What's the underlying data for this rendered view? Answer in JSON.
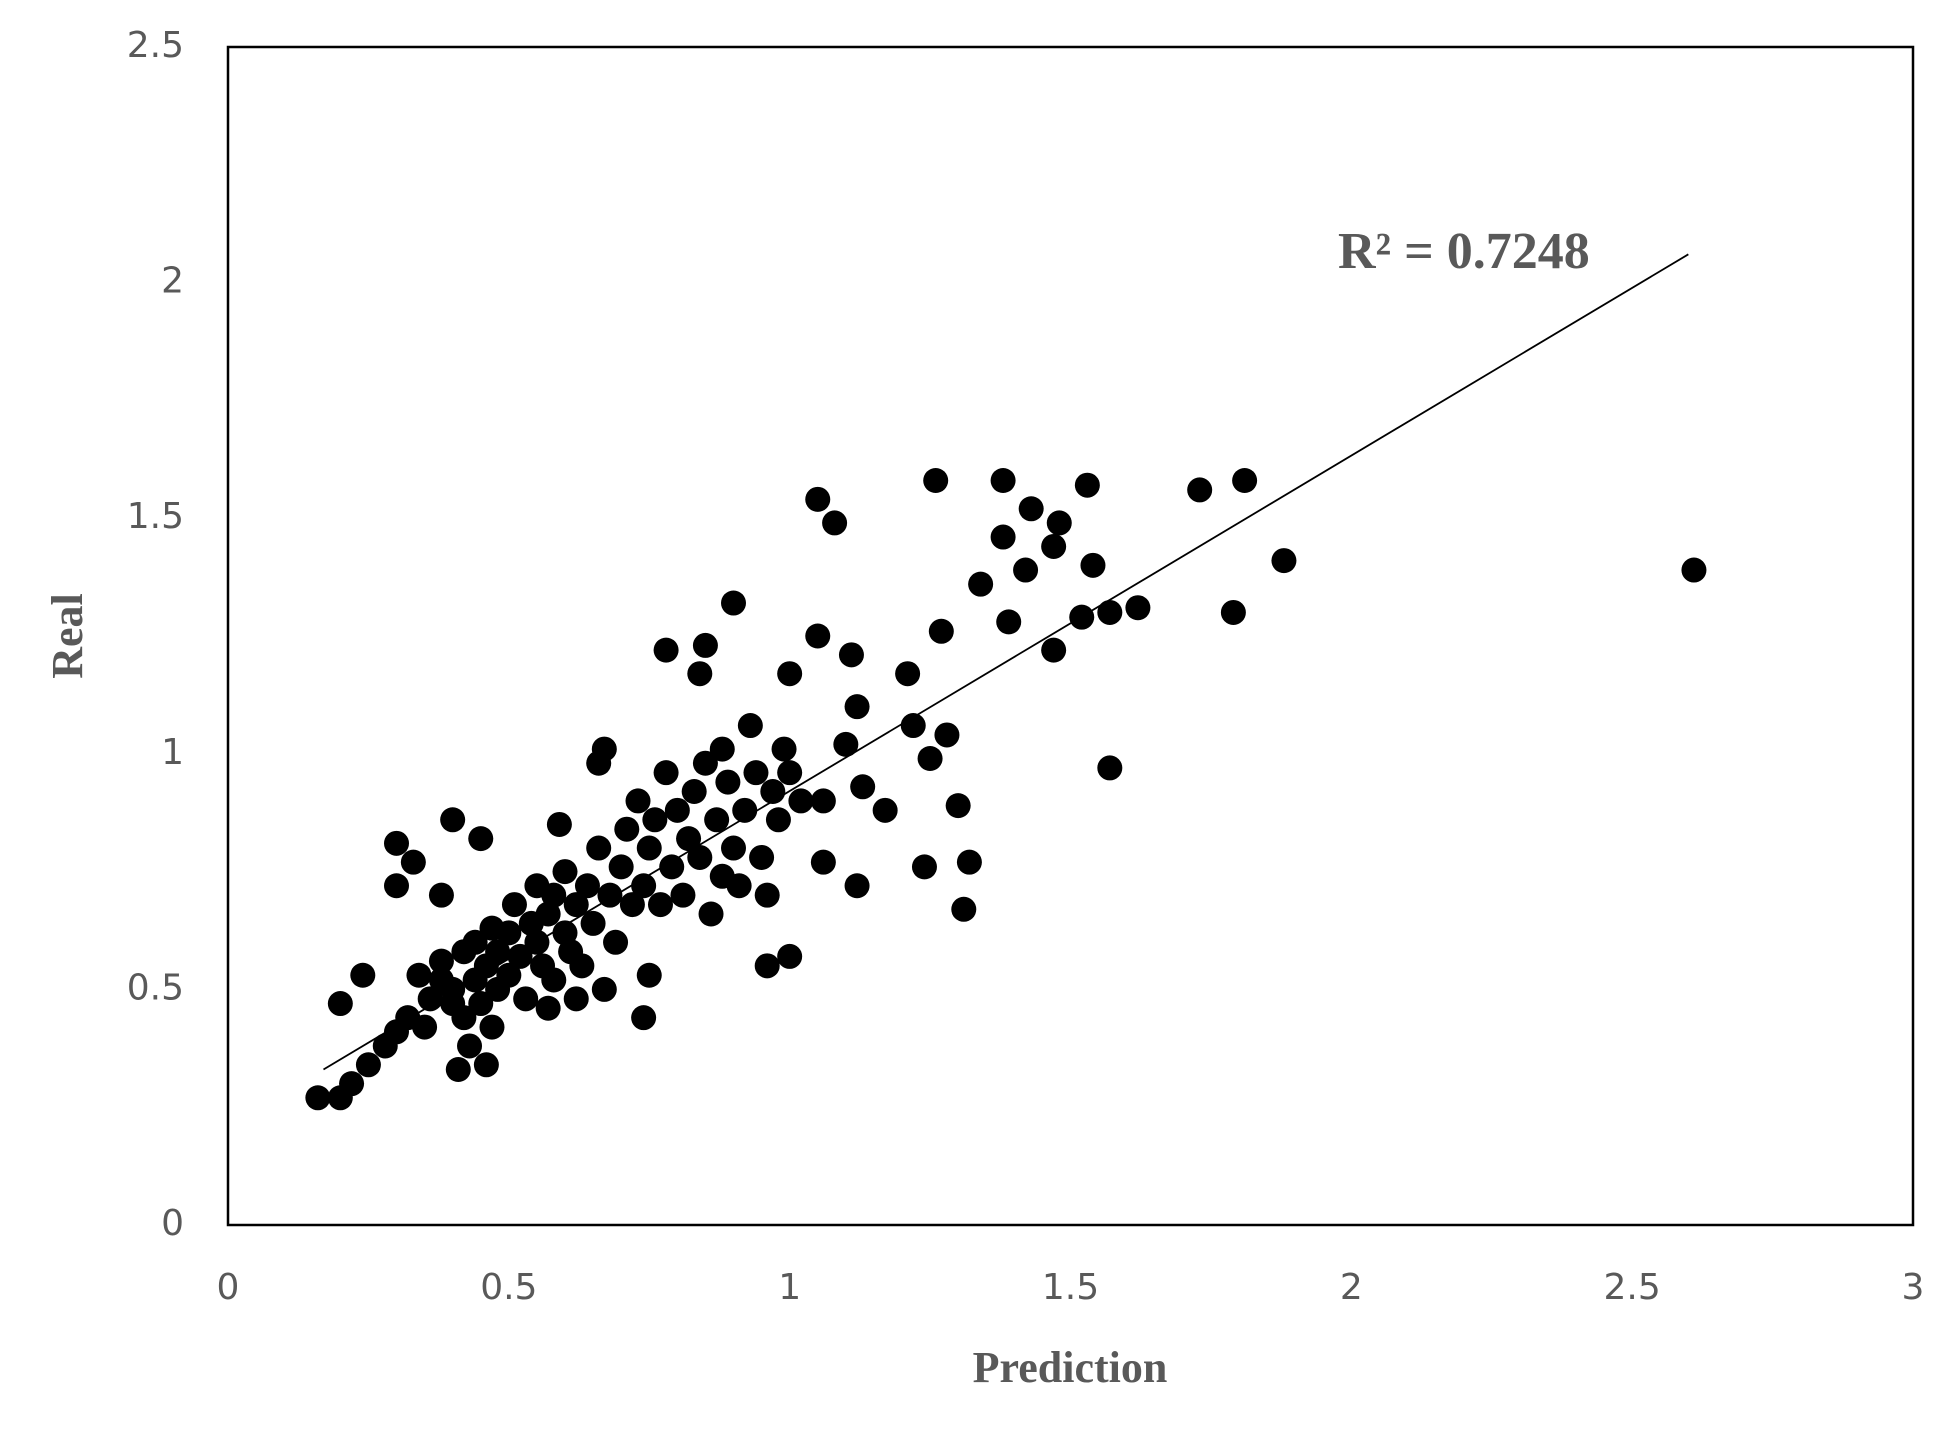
{
  "chart_data": {
    "type": "scatter",
    "x_label": "Prediction",
    "y_label": "Real",
    "annotation": "R² = 0.7248",
    "color": "#000000",
    "xlim": [
      0,
      3
    ],
    "ylim": [
      0,
      2.5
    ],
    "xticks": [
      0,
      0.5,
      1,
      1.5,
      2,
      2.5,
      3
    ],
    "yticks": [
      0,
      0.5,
      1,
      1.5,
      2,
      2.5
    ],
    "trendline": {
      "x": [
        0.17,
        2.6
      ],
      "y": [
        0.33,
        2.06
      ]
    },
    "x": [
      2.61,
      1.88,
      1.81,
      1.73,
      1.79,
      1.62,
      1.57,
      1.57,
      1.53,
      1.54,
      1.52,
      1.47,
      1.48,
      1.47,
      1.43,
      1.42,
      1.38,
      1.38,
      1.39,
      1.34,
      1.26,
      1.27,
      1.28,
      1.25,
      1.3,
      1.32,
      1.31,
      1.24,
      1.22,
      1.21,
      1.17,
      1.13,
      1.12,
      1.11,
      1.12,
      1.1,
      1.08,
      1.05,
      1.05,
      1.06,
      1.06,
      1.0,
      1.0,
      0.96,
      0.9,
      0.85,
      0.84,
      0.78,
      0.93,
      0.88,
      0.99,
      0.67,
      0.66,
      0.74,
      0.75,
      0.4,
      0.3,
      0.33,
      0.3,
      0.45,
      0.59,
      0.46,
      0.41,
      0.24,
      0.2,
      0.16,
      0.2,
      0.22,
      0.25,
      0.28,
      0.3,
      0.32,
      0.35,
      0.36,
      0.38,
      0.38,
      0.4,
      0.4,
      0.42,
      0.42,
      0.44,
      0.44,
      0.45,
      0.46,
      0.47,
      0.48,
      0.48,
      0.5,
      0.5,
      0.51,
      0.52,
      0.53,
      0.54,
      0.55,
      0.55,
      0.56,
      0.57,
      0.58,
      0.58,
      0.6,
      0.6,
      0.61,
      0.62,
      0.63,
      0.64,
      0.65,
      0.66,
      0.67,
      0.68,
      0.69,
      0.7,
      0.71,
      0.72,
      0.73,
      0.74,
      0.75,
      0.76,
      0.77,
      0.78,
      0.79,
      0.8,
      0.81,
      0.82,
      0.83,
      0.84,
      0.85,
      0.86,
      0.87,
      0.88,
      0.89,
      0.9,
      0.91,
      0.92,
      0.94,
      0.95,
      0.96,
      0.97,
      0.98,
      1.0,
      1.02,
      0.43,
      0.47,
      0.57,
      0.62,
      0.34,
      0.38
    ],
    "y": [
      1.39,
      1.41,
      1.58,
      1.56,
      1.3,
      1.31,
      1.3,
      0.97,
      1.57,
      1.4,
      1.29,
      1.22,
      1.49,
      1.44,
      1.52,
      1.39,
      1.46,
      1.58,
      1.28,
      1.36,
      1.58,
      1.26,
      1.04,
      0.99,
      0.89,
      0.77,
      0.67,
      0.76,
      1.06,
      1.17,
      0.88,
      0.93,
      0.72,
      1.21,
      1.1,
      1.02,
      1.49,
      1.54,
      1.25,
      0.77,
      0.9,
      1.17,
      0.57,
      0.55,
      1.32,
      1.23,
      1.17,
      1.22,
      1.06,
      1.01,
      1.01,
      1.01,
      0.98,
      0.44,
      0.53,
      0.86,
      0.81,
      0.77,
      0.72,
      0.82,
      0.85,
      0.34,
      0.33,
      0.53,
      0.47,
      0.27,
      0.27,
      0.3,
      0.34,
      0.38,
      0.41,
      0.44,
      0.42,
      0.48,
      0.52,
      0.56,
      0.47,
      0.5,
      0.44,
      0.58,
      0.52,
      0.6,
      0.47,
      0.55,
      0.63,
      0.5,
      0.58,
      0.53,
      0.62,
      0.68,
      0.57,
      0.48,
      0.64,
      0.6,
      0.72,
      0.55,
      0.66,
      0.52,
      0.7,
      0.62,
      0.75,
      0.58,
      0.68,
      0.55,
      0.72,
      0.64,
      0.8,
      0.5,
      0.7,
      0.6,
      0.76,
      0.84,
      0.68,
      0.9,
      0.72,
      0.8,
      0.86,
      0.68,
      0.96,
      0.76,
      0.88,
      0.7,
      0.82,
      0.92,
      0.78,
      0.98,
      0.66,
      0.86,
      0.74,
      0.94,
      0.8,
      0.72,
      0.88,
      0.96,
      0.78,
      0.7,
      0.92,
      0.86,
      0.96,
      0.9,
      0.38,
      0.42,
      0.46,
      0.48,
      0.53,
      0.7
    ]
  }
}
